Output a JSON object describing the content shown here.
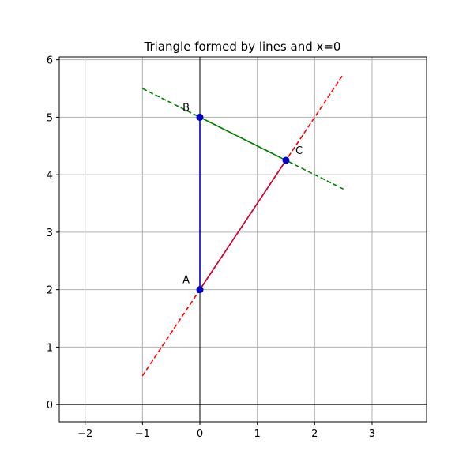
{
  "chart_data": {
    "type": "line",
    "title": "Triangle formed by lines and x=0",
    "xlabel": "",
    "ylabel": "",
    "xlim": [
      -2.45,
      3.95
    ],
    "ylim": [
      -0.3,
      6.05
    ],
    "xticks": [
      -2,
      -1,
      0,
      1,
      2,
      3
    ],
    "yticks": [
      0,
      1,
      2,
      3,
      4,
      5,
      6
    ],
    "grid": true,
    "axis_lines": {
      "x0": true,
      "y0": true
    },
    "lines": [
      {
        "id": "line-1",
        "color": "#ff0000",
        "style": "dashed",
        "points": [
          [
            -1,
            0.5
          ],
          [
            2.5,
            5.75
          ]
        ]
      },
      {
        "id": "line-2",
        "color": "#008000",
        "style": "dashed",
        "points": [
          [
            -1,
            5.5
          ],
          [
            2.5,
            3.75
          ]
        ]
      }
    ],
    "triangle": {
      "edges": [
        {
          "id": "edge-ab",
          "from": "A",
          "to": "B",
          "color": "#0000cc"
        },
        {
          "id": "edge-bc",
          "from": "B",
          "to": "C",
          "color": "#008000"
        },
        {
          "id": "edge-ca",
          "from": "C",
          "to": "A",
          "color": "#cc0033"
        }
      ],
      "vertices": [
        {
          "label": "A",
          "x": 0,
          "y": 2,
          "label_side": "left"
        },
        {
          "label": "B",
          "x": 0,
          "y": 5,
          "label_side": "left"
        },
        {
          "label": "C",
          "x": 1.5,
          "y": 4.25,
          "label_side": "right"
        }
      ],
      "point_color": "#0000cc"
    }
  }
}
